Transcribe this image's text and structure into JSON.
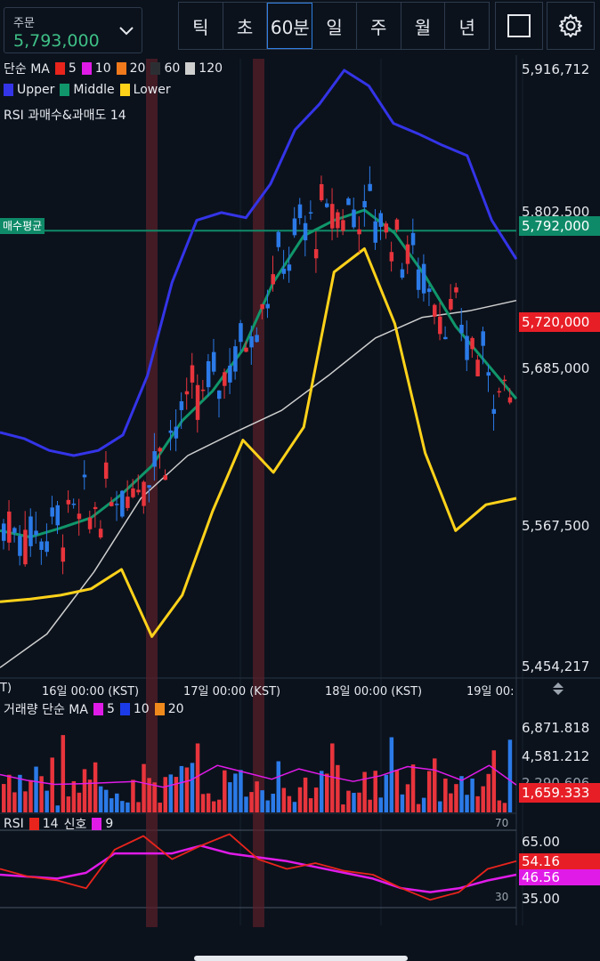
{
  "header": {
    "order_label": "주문",
    "order_price": "5,793,000",
    "timeframes": [
      "틱",
      "초",
      "60분",
      "일",
      "주",
      "월",
      "년"
    ],
    "active_timeframe": "60분",
    "icons": [
      "chevron-down-icon",
      "square-icon",
      "gear-icon"
    ]
  },
  "price_panel": {
    "legend_ma_label": "단순 MA",
    "ma_periods": [
      "5",
      "10",
      "20",
      "60",
      "120"
    ],
    "ma_colors": [
      "#e8241c",
      "#e01be8",
      "#f07a1c",
      "#2b2f33",
      "#cfcfcf"
    ],
    "bb_labels": [
      "Upper",
      "Middle",
      "Lower"
    ],
    "bb_colors": [
      "#3434e8",
      "#10966a",
      "#ffd21a"
    ],
    "rsi_highlight_label": "RSI 과매수&과매도 14",
    "avg_label": "매수평균",
    "avg_price": "5,792,000",
    "last_price": "5,720,000",
    "axis_labels": [
      "5,916,712",
      "5,802,500",
      "5,685,000",
      "5,567,500",
      "5,454,217"
    ]
  },
  "time_axis": {
    "labels": [
      "16일 00:00 (KST)",
      "17일 00:00 (KST)",
      "18일 00:00 (KST)",
      "19일 00:"
    ],
    "edge_label": "T)"
  },
  "volume_panel": {
    "legend_label": "거래량 단순 MA",
    "ma_periods": [
      "5",
      "10",
      "20"
    ],
    "ma_colors": [
      "#e01be8",
      "#1c3be8",
      "#f08a1c"
    ],
    "axis_labels": [
      "6,871.818",
      "4,581.212",
      "2,290.606"
    ],
    "last_value": "1,659.333"
  },
  "rsi_panel": {
    "legend_rsi": "RSI",
    "period": "14",
    "signal_label": "신호",
    "signal_period": "9",
    "rsi_color": "#e8241c",
    "signal_color": "#e01be8",
    "axis_labels": [
      "65.00",
      "35.00"
    ],
    "edge_values": [
      "70",
      "30"
    ],
    "rsi_value": "54.16",
    "signal_value": "46.56"
  },
  "chart_data": {
    "type": "candlestick",
    "y_range": [
      5454217,
      5916712
    ],
    "upper_band": [
      5636000,
      5631000,
      5622000,
      5618000,
      5622000,
      5634000,
      5680000,
      5752000,
      5800000,
      5806000,
      5802000,
      5828000,
      5870000,
      5890000,
      5916000,
      5904000,
      5875000,
      5867000,
      5858000,
      5850000,
      5800000,
      5770000
    ],
    "middle_band": [
      5560000,
      5555000,
      5562000,
      5570000,
      5588000,
      5610000,
      5645000,
      5668000,
      5700000,
      5752000,
      5788000,
      5800000,
      5808000,
      5790000,
      5757000,
      5718000,
      5690000,
      5662000
    ],
    "lower_band": [
      5505000,
      5507000,
      5510000,
      5515000,
      5530000,
      5478000,
      5510000,
      5575000,
      5630000,
      5605000,
      5640000,
      5760000,
      5778000,
      5720000,
      5620000,
      5560000,
      5580000,
      5585000
    ],
    "ma120": [
      5454000,
      5480000,
      5528000,
      5585000,
      5618000,
      5636000,
      5653000,
      5680000,
      5709000,
      5725000,
      5730000,
      5738000
    ],
    "volume_ma5": [
      3300,
      2800,
      2450,
      2500,
      2600,
      2700,
      2200,
      2800,
      4100,
      3500,
      2900,
      3800,
      3200,
      2700,
      3200,
      4000,
      3700,
      2800,
      4100,
      2400
    ],
    "rsi": [
      50,
      46,
      44,
      40,
      60,
      67,
      55,
      62,
      68,
      55,
      50,
      53,
      49,
      47,
      40,
      34,
      38,
      50,
      54
    ],
    "rsi_signal": [
      47,
      46,
      45,
      48,
      58,
      58,
      58,
      62,
      58,
      56,
      54,
      51,
      48,
      45,
      40,
      38,
      40,
      44,
      47
    ]
  }
}
